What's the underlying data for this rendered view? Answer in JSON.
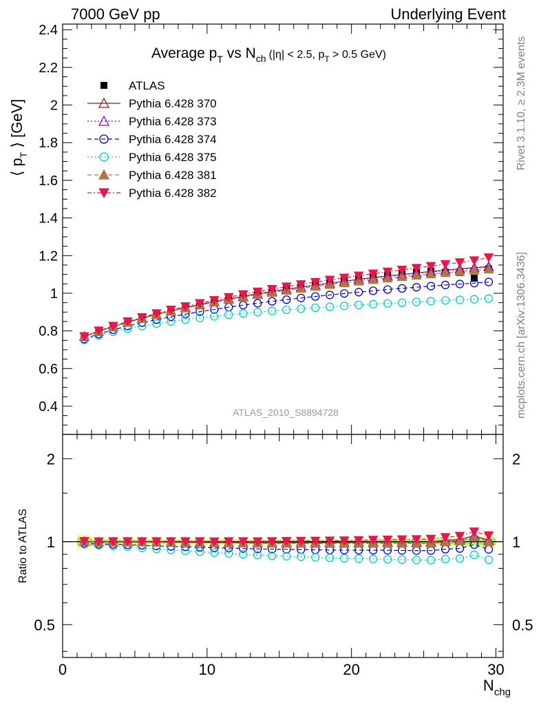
{
  "header": {
    "left": "7000 GeV pp",
    "right": "Underlying Event"
  },
  "side_labels": {
    "rivet": "Rivet 3.1.10, ≥ 2.3M events",
    "mcplots": "mcplots.cern.ch [arXiv:1306.3436]"
  },
  "analysis_label": "ATLAS_2010_S8894728",
  "chart_data": {
    "type": "scatter",
    "title": "Average p_T vs N_ch (|η| < 2.5, p_T > 0.5 GeV)",
    "title_parts": {
      "main": "Average p",
      "sub1": "T",
      "mid": " vs N",
      "sub2": "ch",
      "cuts_a": "(|η| < 2.5, p",
      "sub3": "T",
      "cuts_b": " > 0.5 GeV)"
    },
    "ylabel": "⟨ p_T ⟩ [GeV]",
    "ylabel_parts": {
      "a": "⟨ p",
      "sub": "T",
      "b": " ⟩ [GeV]"
    },
    "xlabel": "N_chg",
    "xlabel_parts": {
      "a": "N",
      "sub": "chg"
    },
    "ratio_ylabel": "Ratio to ATLAS",
    "xlim": [
      0,
      30.5
    ],
    "ylim": [
      0.25,
      2.43
    ],
    "ratio_ylim": [
      0.38,
      2.45
    ],
    "x_ticks": [
      0,
      10,
      20,
      30
    ],
    "x_tick_labels": [
      "0",
      "10",
      "20",
      "30"
    ],
    "y_ticks": [
      0.4,
      0.6,
      0.8,
      1,
      1.2,
      1.4,
      1.6,
      1.8,
      2,
      2.2,
      2.4
    ],
    "y_tick_labels": [
      "0.4",
      "0.6",
      "0.8",
      "1",
      "1.2",
      "1.4",
      "1.6",
      "1.8",
      "2",
      "2.2",
      "2.4"
    ],
    "ratio_ticks": [
      0.5,
      1,
      2
    ],
    "ratio_tick_labels": [
      "0.5",
      "1",
      "2"
    ],
    "x": [
      1.5,
      2.5,
      3.5,
      4.5,
      5.5,
      6.5,
      7.5,
      8.5,
      9.5,
      10.5,
      11.5,
      12.5,
      13.5,
      14.5,
      15.5,
      16.5,
      17.5,
      18.5,
      19.5,
      20.5,
      21.5,
      22.5,
      23.5,
      24.5,
      25.5,
      26.5,
      27.5,
      28.5,
      29.5
    ],
    "data": {
      "name": "ATLAS",
      "values": [
        0.768,
        0.8,
        0.824,
        0.848,
        0.87,
        0.891,
        0.91,
        0.928,
        0.945,
        0.962,
        0.977,
        0.992,
        1.006,
        1.019,
        1.03,
        1.041,
        1.052,
        1.062,
        1.072,
        1.08,
        1.088,
        1.096,
        1.104,
        1.112,
        1.118,
        1.112,
        1.11,
        1.08,
        1.13
      ],
      "band_rel": [
        0.06,
        0.03,
        0.03,
        0.025,
        0.025,
        0.025,
        0.025,
        0.025,
        0.025,
        0.025,
        0.025,
        0.025,
        0.025,
        0.025,
        0.025,
        0.025,
        0.025,
        0.025,
        0.025,
        0.025,
        0.025,
        0.03,
        0.03,
        0.03,
        0.035,
        0.04,
        0.045,
        0.045,
        0.05
      ]
    },
    "series": [
      {
        "name": "Pythia 6.428 370",
        "color": "#8b1a1a",
        "marker": "triangle-open",
        "dash": "",
        "values": [
          0.77,
          0.798,
          0.822,
          0.846,
          0.868,
          0.888,
          0.906,
          0.924,
          0.94,
          0.955,
          0.97,
          0.984,
          0.997,
          1.01,
          1.022,
          1.033,
          1.044,
          1.054,
          1.064,
          1.074,
          1.083,
          1.092,
          1.1,
          1.108,
          1.116,
          1.123,
          1.13,
          1.136,
          1.142
        ]
      },
      {
        "name": "Pythia 6.428 373",
        "color": "#9400d3",
        "marker": "triangle-open",
        "dash": "2,3",
        "values": [
          0.769,
          0.797,
          0.821,
          0.845,
          0.867,
          0.887,
          0.905,
          0.922,
          0.938,
          0.953,
          0.968,
          0.982,
          0.995,
          1.008,
          1.02,
          1.031,
          1.042,
          1.052,
          1.062,
          1.072,
          1.081,
          1.09,
          1.098,
          1.106,
          1.113,
          1.12,
          1.127,
          1.133,
          1.14
        ]
      },
      {
        "name": "Pythia 6.428 374",
        "color": "#0000d0",
        "marker": "circle-open",
        "dash": "6,4",
        "values": [
          0.757,
          0.784,
          0.806,
          0.826,
          0.844,
          0.86,
          0.875,
          0.889,
          0.902,
          0.914,
          0.926,
          0.937,
          0.947,
          0.957,
          0.966,
          0.975,
          0.983,
          0.991,
          0.999,
          1.006,
          1.013,
          1.02,
          1.026,
          1.032,
          1.038,
          1.044,
          1.049,
          1.054,
          1.06
        ]
      },
      {
        "name": "Pythia 6.428 375",
        "color": "#00d0c0",
        "marker": "circle-open",
        "dash": "2,3",
        "values": [
          0.752,
          0.776,
          0.795,
          0.812,
          0.826,
          0.839,
          0.85,
          0.86,
          0.869,
          0.878,
          0.886,
          0.893,
          0.9,
          0.906,
          0.912,
          0.918,
          0.923,
          0.928,
          0.933,
          0.938,
          0.942,
          0.946,
          0.95,
          0.954,
          0.958,
          0.962,
          0.965,
          0.968,
          0.972
        ]
      },
      {
        "name": "Pythia 6.428 381",
        "color": "#b07840",
        "marker": "triangle-filled",
        "dash": "6,4",
        "values": [
          0.772,
          0.799,
          0.822,
          0.845,
          0.866,
          0.886,
          0.904,
          0.921,
          0.937,
          0.952,
          0.966,
          0.979,
          0.992,
          1.004,
          1.015,
          1.026,
          1.036,
          1.046,
          1.055,
          1.064,
          1.072,
          1.08,
          1.088,
          1.095,
          1.102,
          1.109,
          1.116,
          1.122,
          1.128
        ]
      },
      {
        "name": "Pythia 6.428 382",
        "color": "#e8174a",
        "marker": "triangle-down-filled",
        "dash": "6,3,2,3",
        "values": [
          0.771,
          0.801,
          0.826,
          0.85,
          0.872,
          0.893,
          0.912,
          0.93,
          0.947,
          0.963,
          0.979,
          0.994,
          1.008,
          1.022,
          1.035,
          1.047,
          1.059,
          1.071,
          1.082,
          1.093,
          1.104,
          1.114,
          1.124,
          1.134,
          1.144,
          1.154,
          1.164,
          1.174,
          1.19
        ]
      }
    ]
  }
}
